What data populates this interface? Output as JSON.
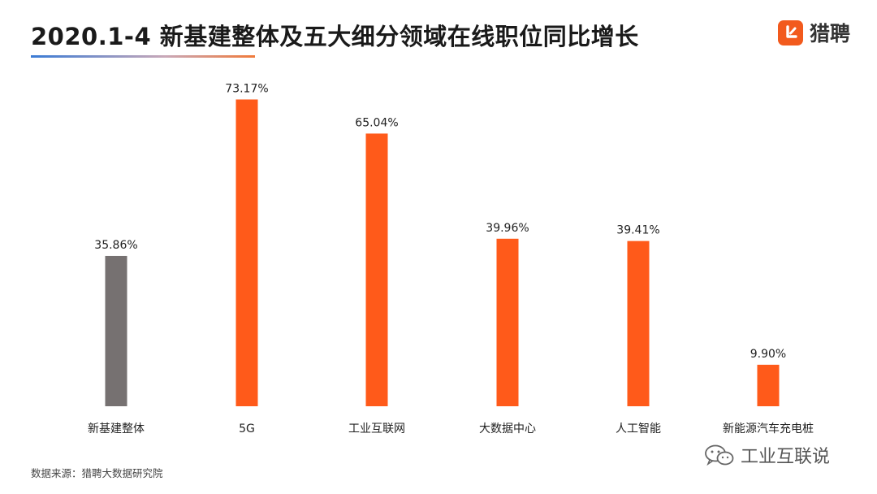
{
  "header": {
    "title": "2020.1-4 新基建整体及五大细分领域在线职位同比增长"
  },
  "logo": {
    "text": "猎聘",
    "icon": "liepin-logo-icon",
    "color": "#f25a1d"
  },
  "chart_data": {
    "type": "bar",
    "title": "2020.1-4 新基建整体及五大细分领域在线职位同比增长",
    "xlabel": "",
    "ylabel": "",
    "ylim": [
      0,
      80
    ],
    "grid": false,
    "legend": "none",
    "categories": [
      "新基建整体",
      "5G",
      "工业互联网",
      "大数据中心",
      "人工智能",
      "新能源汽车充电桩"
    ],
    "values": [
      35.86,
      73.17,
      65.04,
      39.96,
      39.41,
      9.9
    ],
    "value_labels": [
      "35.86%",
      "73.17%",
      "65.04%",
      "39.96%",
      "39.41%",
      "9.90%"
    ],
    "colors": [
      "#767171",
      "#ff5a1a",
      "#ff5a1a",
      "#ff5a1a",
      "#ff5a1a",
      "#ff5a1a"
    ]
  },
  "footer": {
    "source": "数据来源：猎聘大数据研究院"
  },
  "watermark": {
    "text": "工业互联说",
    "icon": "wechat-icon"
  }
}
